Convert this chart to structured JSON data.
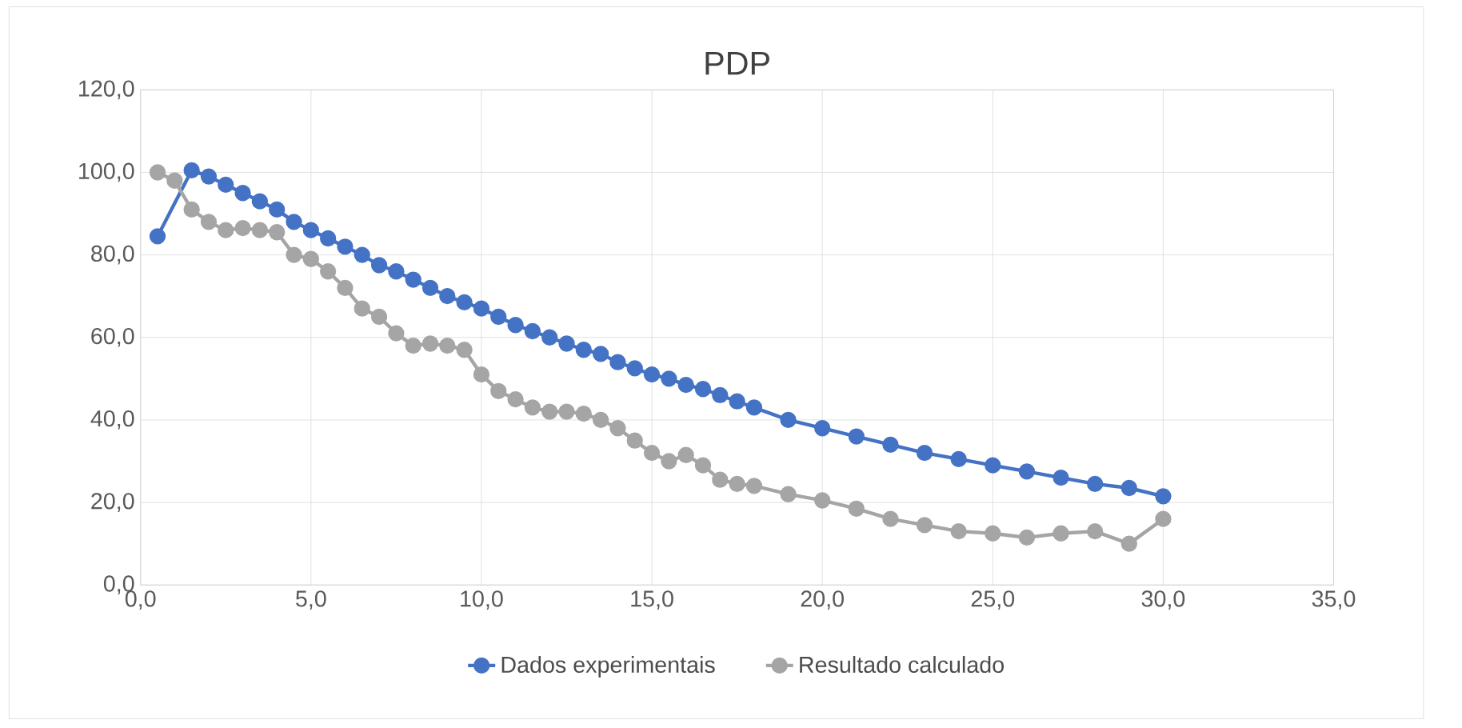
{
  "chart_data": {
    "type": "line",
    "title": "PDP",
    "marker": "circle",
    "grid": true,
    "legend": "bottom",
    "xlim": [
      0,
      35
    ],
    "ylim": [
      0,
      120
    ],
    "xticks": [
      {
        "value": 0,
        "label": "0,0"
      },
      {
        "value": 5,
        "label": "5,0"
      },
      {
        "value": 10,
        "label": "10,0"
      },
      {
        "value": 15,
        "label": "15,0"
      },
      {
        "value": 20,
        "label": "20,0"
      },
      {
        "value": 25,
        "label": "25,0"
      },
      {
        "value": 30,
        "label": "30,0"
      },
      {
        "value": 35,
        "label": "35,0"
      }
    ],
    "yticks": [
      {
        "value": 0,
        "label": "0,0"
      },
      {
        "value": 20,
        "label": "20,0"
      },
      {
        "value": 40,
        "label": "40,0"
      },
      {
        "value": 60,
        "label": "60,0"
      },
      {
        "value": 80,
        "label": "80,0"
      },
      {
        "value": 100,
        "label": "100,0"
      },
      {
        "value": 120,
        "label": "120,0"
      }
    ],
    "x": [
      0.5,
      1.0,
      1.5,
      2.0,
      2.5,
      3.0,
      3.5,
      4.0,
      4.5,
      5.0,
      5.5,
      6.0,
      6.5,
      7.0,
      7.5,
      8.0,
      8.5,
      9.0,
      9.5,
      10.0,
      10.5,
      11.0,
      11.5,
      12.0,
      12.5,
      13.0,
      13.5,
      14.0,
      14.5,
      15.0,
      15.5,
      16.0,
      16.5,
      17.0,
      17.5,
      18.0,
      19,
      20,
      21,
      22,
      23,
      24,
      25,
      26,
      27,
      28,
      29,
      30
    ],
    "series": [
      {
        "name": "Dados experimentais",
        "color": "#4472c4",
        "values": [
          84.5,
          null,
          100.5,
          99,
          97,
          95,
          93,
          91,
          88,
          86,
          84,
          82,
          80,
          77.5,
          76,
          74,
          72,
          70,
          68.5,
          67,
          65,
          63,
          61.5,
          60,
          58.5,
          57,
          56,
          54,
          52.5,
          51,
          50,
          48.5,
          47.5,
          46,
          44.5,
          43,
          40,
          38,
          36,
          34,
          32,
          30.5,
          29,
          27.5,
          26,
          24.5,
          23.5,
          21.5
        ]
      },
      {
        "name": "Resultado calculado",
        "color": "#a5a5a5",
        "values": [
          100,
          98,
          91,
          88,
          86,
          86.5,
          86,
          85.5,
          80,
          79,
          76,
          72,
          67,
          65,
          61,
          58,
          58.5,
          58,
          57,
          51,
          47,
          45,
          43,
          42,
          42,
          41.5,
          40,
          38,
          35,
          32,
          30,
          31.5,
          29,
          25.5,
          24.5,
          24,
          22,
          20.5,
          18.5,
          16,
          14.5,
          13,
          12.5,
          11.5,
          12.5,
          13,
          10,
          16
        ]
      }
    ]
  }
}
